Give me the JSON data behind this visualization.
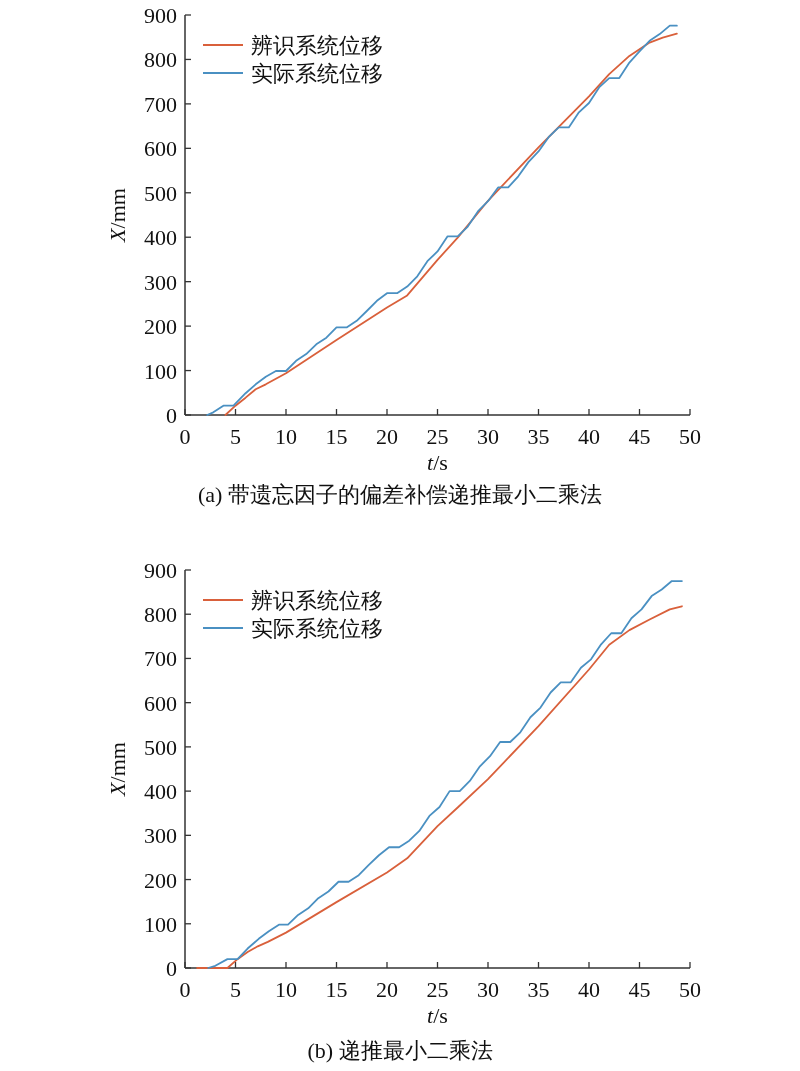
{
  "chart_data": [
    {
      "type": "line",
      "subtitle": "(a) 带遗忘因子的偏差补偿递推最小二乘法",
      "xlabel": "*t*/s",
      "ylabel": "*X*/mm",
      "xlim": [
        0,
        50
      ],
      "ylim": [
        0,
        900
      ],
      "xticks": [
        0,
        5,
        10,
        15,
        20,
        25,
        30,
        35,
        40,
        45,
        50
      ],
      "yticks": [
        0,
        100,
        200,
        300,
        400,
        500,
        600,
        700,
        800,
        900
      ],
      "legend": "top left",
      "grid": false,
      "marker": "none",
      "line_style": "solid",
      "series": [
        {
          "name": "辨识系统位移",
          "color": "#d9603b",
          "x": [
            4,
            5,
            6,
            7,
            8,
            10,
            15,
            20,
            22,
            25,
            27,
            30,
            35,
            40,
            42,
            44,
            46,
            47.3,
            48.7
          ],
          "values": [
            0,
            21,
            39,
            58,
            69,
            94,
            169,
            242,
            269,
            349,
            399,
            482,
            602,
            717,
            767,
            808,
            838,
            849,
            858
          ]
        },
        {
          "name": "实际系统位移",
          "color": "#4a90c2",
          "x": [
            2.2,
            2.8,
            3.8,
            4.8,
            6,
            7,
            8,
            9,
            10,
            11,
            12,
            13,
            14,
            15,
            16,
            17,
            18,
            19,
            20,
            21,
            22,
            23,
            24,
            25,
            26,
            27,
            28,
            29,
            30,
            31,
            32,
            33,
            34,
            35,
            36,
            37,
            38,
            39,
            40,
            41,
            42,
            43,
            44,
            45,
            46,
            47,
            48,
            48.7
          ],
          "values": [
            0,
            6,
            21,
            21,
            49,
            69,
            86,
            99,
            99,
            122,
            137,
            159,
            174,
            197,
            197,
            212,
            234,
            257,
            274,
            274,
            289,
            312,
            346,
            368,
            402,
            402,
            424,
            458,
            481,
            512,
            512,
            537,
            569,
            593,
            625,
            647,
            647,
            681,
            702,
            737,
            758,
            758,
            793,
            818,
            842,
            857,
            876,
            876
          ]
        }
      ]
    },
    {
      "type": "line",
      "subtitle": "(b) 递推最小二乘法",
      "xlabel": "*t*/s",
      "ylabel": "*X*/mm",
      "xlim": [
        0,
        50
      ],
      "ylim": [
        0,
        900
      ],
      "xticks": [
        0,
        5,
        10,
        15,
        20,
        25,
        30,
        35,
        40,
        45,
        50
      ],
      "yticks": [
        0,
        100,
        200,
        300,
        400,
        500,
        600,
        700,
        800,
        900
      ],
      "legend": "top left",
      "grid": false,
      "marker": "none",
      "line_style": "solid",
      "series": [
        {
          "name": "辨识系统位移",
          "color": "#d9603b",
          "x": [
            1.2,
            4.2,
            5.2,
            6.2,
            7.2,
            8.2,
            10,
            15,
            20,
            22,
            25,
            27,
            30,
            35,
            40,
            42,
            44,
            46,
            48,
            49.2
          ],
          "values": [
            0,
            0,
            20,
            36,
            49,
            59,
            80,
            149,
            216,
            248,
            321,
            363,
            427,
            547,
            675,
            731,
            764,
            788,
            811,
            818
          ]
        },
        {
          "name": "实际系统位移",
          "color": "#4a90c2",
          "x": [
            2.3,
            3,
            4.2,
            5.2,
            6.2,
            7.3,
            8.3,
            9.3,
            10.2,
            11.2,
            12.2,
            13.2,
            14.2,
            15.2,
            16.2,
            17.2,
            18.2,
            19.2,
            20.2,
            21.2,
            22.2,
            23.2,
            24.2,
            25.2,
            26.2,
            27.2,
            28.2,
            29.2,
            30.2,
            31.2,
            32.2,
            33.2,
            34.2,
            35.2,
            36.2,
            37.2,
            38.2,
            39.2,
            40.2,
            41.2,
            42.2,
            43.2,
            44.2,
            45.2,
            46.2,
            47.2,
            48.2,
            49.2
          ],
          "values": [
            0,
            5,
            20,
            20,
            44,
            66,
            83,
            98,
            98,
            120,
            135,
            158,
            173,
            195,
            195,
            210,
            233,
            255,
            273,
            273,
            288,
            310,
            344,
            364,
            400,
            400,
            423,
            456,
            479,
            511,
            511,
            533,
            567,
            589,
            623,
            646,
            646,
            679,
            698,
            732,
            757,
            757,
            791,
            811,
            841,
            856,
            875,
            875
          ]
        }
      ]
    }
  ]
}
